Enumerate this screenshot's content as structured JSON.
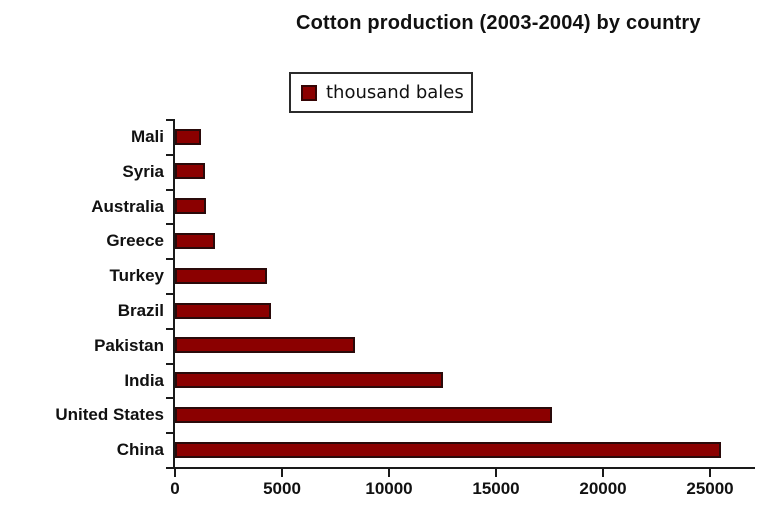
{
  "figure": {
    "title": "Cotton production (2003-2004) by country",
    "legend": {
      "label": "thousand bales",
      "swatch_color": "#8B0000"
    }
  },
  "colors": {
    "bar_fill": "#8B0000",
    "bar_border": "#2A0A0A",
    "axis": "#1a1a1a",
    "text": "#111111",
    "background": "#FFFFFF"
  },
  "chart_data": {
    "type": "bar",
    "orientation": "horizontal",
    "title": "Cotton production (2003-2004) by country",
    "unit": "thousand bales",
    "legend_entries": [
      "thousand bales"
    ],
    "legend_position": "top-center",
    "categories": [
      "Mali",
      "Syria",
      "Australia",
      "Greece",
      "Turkey",
      "Brazil",
      "Pakistan",
      "India",
      "United States",
      "China"
    ],
    "values": [
      1200,
      1400,
      1450,
      1850,
      4300,
      4500,
      8400,
      12500,
      17600,
      25500
    ],
    "x_ticks": [
      0,
      5000,
      10000,
      15000,
      20000,
      25000
    ],
    "x_tick_labels": [
      "0",
      "5000",
      "10000",
      "15000",
      "20000",
      "25000"
    ],
    "xlim": [
      0,
      27150
    ],
    "xlabel": "",
    "ylabel": "",
    "grid": false
  }
}
